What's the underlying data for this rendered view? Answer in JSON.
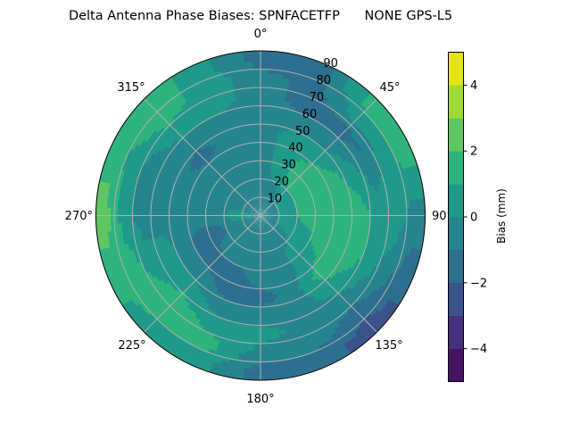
{
  "chart_data": {
    "type": "heatmap",
    "subtype": "polar-filled-contour",
    "title": "Delta Antenna Phase Biases: SPNFACETFP      NONE GPS-L5",
    "angular_axis": {
      "direction": "clockwise",
      "zero_location": "top",
      "tick_labels": [
        "0°",
        "45°",
        "90°",
        "135°",
        "180°",
        "225°",
        "270°",
        "315°"
      ],
      "tick_values": [
        0,
        45,
        90,
        135,
        180,
        225,
        270,
        315
      ]
    },
    "radial_axis": {
      "range": [
        0,
        90
      ],
      "tick_labels": [
        "10",
        "20",
        "30",
        "40",
        "50",
        "60",
        "70",
        "80",
        "90"
      ],
      "tick_values": [
        10,
        20,
        30,
        40,
        50,
        60,
        70,
        80,
        90
      ]
    },
    "grid": true,
    "colorbar": {
      "label": "Bias (mm)",
      "range": [
        -5,
        5
      ],
      "levels": [
        -5,
        -4,
        -3,
        -2,
        -1,
        0,
        1,
        2,
        3,
        4,
        5
      ],
      "tick_labels": [
        "−4",
        "−2",
        "0",
        "2",
        "4"
      ],
      "tick_values": [
        -4,
        -2,
        0,
        2,
        4
      ],
      "colormap": "viridis",
      "band_colors": [
        "#471164",
        "#472f7d",
        "#3a538b",
        "#2d6f8e",
        "#26848e",
        "#1f9a8a",
        "#2fb37c",
        "#5ec762",
        "#9ed93a",
        "#e2e419"
      ],
      "placement": "right"
    },
    "grid_azimuths": [
      0,
      22.5,
      45,
      67.5,
      90,
      112.5,
      135,
      157.5,
      180,
      202.5,
      225,
      247.5,
      270,
      292.5,
      315,
      337.5
    ],
    "grid_zeniths": [
      5,
      15,
      25,
      35,
      45,
      55,
      65,
      75,
      85
    ],
    "bias_values": [
      [
        -0.5,
        -0.5,
        -0.5,
        -0.5,
        -0.5,
        -0.5,
        -0.5,
        -0.5,
        -1.5
      ],
      [
        -0.5,
        -0.5,
        0.5,
        0.5,
        0.5,
        -0.5,
        -1.5,
        -1.5,
        -1.5
      ],
      [
        -0.5,
        0.5,
        1.5,
        1.5,
        0.5,
        -0.5,
        -1.5,
        0.5,
        1.5
      ],
      [
        -0.5,
        0.5,
        1.5,
        1.5,
        1.5,
        0.5,
        -0.5,
        0.5,
        1.5
      ],
      [
        -0.5,
        0.5,
        1.5,
        1.5,
        1.5,
        1.5,
        0.5,
        0.5,
        -0.5
      ],
      [
        -0.5,
        0.5,
        0.5,
        1.5,
        1.5,
        1.5,
        0.5,
        -0.5,
        -1.5
      ],
      [
        -0.5,
        -0.5,
        0.5,
        0.5,
        1.5,
        0.5,
        -0.5,
        -1.5,
        -2.5
      ],
      [
        -0.5,
        -0.5,
        -0.5,
        -0.5,
        -0.5,
        -0.5,
        -0.5,
        -0.5,
        -1.5
      ],
      [
        -0.5,
        -0.5,
        -0.5,
        -0.5,
        -1.5,
        -0.5,
        0.5,
        -0.5,
        -1.5
      ],
      [
        -0.5,
        -0.5,
        -0.5,
        -1.5,
        -1.5,
        -0.5,
        0.5,
        1.5,
        0.5
      ],
      [
        -0.5,
        -0.5,
        -0.5,
        -1.5,
        -0.5,
        0.5,
        1.5,
        1.5,
        0.5
      ],
      [
        -0.5,
        -0.5,
        -1.5,
        -1.5,
        -0.5,
        0.5,
        0.5,
        1.5,
        1.5
      ],
      [
        0.5,
        0.5,
        -0.5,
        -0.5,
        -0.5,
        -0.5,
        -0.5,
        0.5,
        2.5
      ],
      [
        -0.5,
        -0.5,
        -0.5,
        -0.5,
        -0.5,
        -0.5,
        -0.5,
        0.5,
        1.5
      ],
      [
        -0.5,
        -0.5,
        -0.5,
        -0.5,
        -1.5,
        -0.5,
        0.5,
        1.5,
        1.5
      ],
      [
        -0.5,
        -0.5,
        -0.5,
        -0.5,
        -0.5,
        -0.5,
        0.5,
        0.5,
        0.5
      ]
    ]
  }
}
